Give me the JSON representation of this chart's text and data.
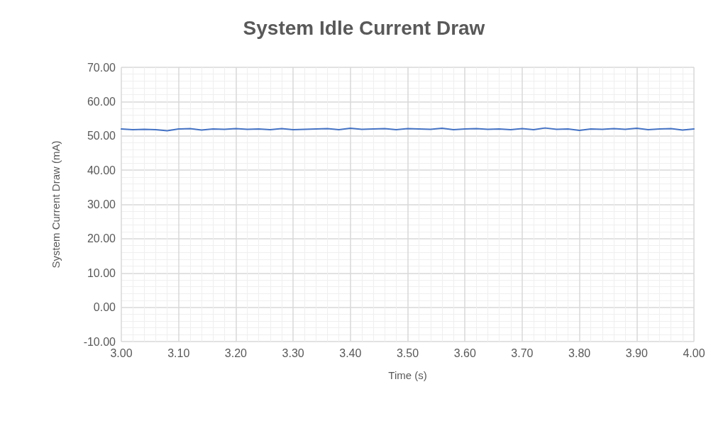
{
  "chart_data": {
    "type": "line",
    "title": "System Idle Current Draw",
    "xlabel": "Time (s)",
    "ylabel": "System Current Draw (mA)",
    "x": [
      3.0,
      3.02,
      3.04,
      3.06,
      3.08,
      3.1,
      3.12,
      3.14,
      3.16,
      3.18,
      3.2,
      3.22,
      3.24,
      3.26,
      3.28,
      3.3,
      3.32,
      3.34,
      3.36,
      3.38,
      3.4,
      3.42,
      3.44,
      3.46,
      3.48,
      3.5,
      3.52,
      3.54,
      3.56,
      3.58,
      3.6,
      3.62,
      3.64,
      3.66,
      3.68,
      3.7,
      3.72,
      3.74,
      3.76,
      3.78,
      3.8,
      3.82,
      3.84,
      3.86,
      3.88,
      3.9,
      3.92,
      3.94,
      3.96,
      3.98,
      4.0
    ],
    "series": [
      {
        "color": "#4472c4",
        "values": [
          52.0,
          51.8,
          51.9,
          51.8,
          51.5,
          52.0,
          52.1,
          51.7,
          52.0,
          51.9,
          52.1,
          51.9,
          52.0,
          51.8,
          52.1,
          51.8,
          51.9,
          52.0,
          52.1,
          51.8,
          52.2,
          51.9,
          52.0,
          52.1,
          51.8,
          52.1,
          52.0,
          51.9,
          52.2,
          51.8,
          52.0,
          52.1,
          51.9,
          52.0,
          51.8,
          52.1,
          51.8,
          52.3,
          51.9,
          52.0,
          51.6,
          52.0,
          51.9,
          52.1,
          51.9,
          52.2,
          51.8,
          52.0,
          52.1,
          51.7,
          52.0
        ]
      }
    ],
    "xlim": [
      3.0,
      4.0
    ],
    "xticks": [
      {
        "value": 3.0,
        "label": "3.00"
      },
      {
        "value": 3.1,
        "label": "3.10"
      },
      {
        "value": 3.2,
        "label": "3.20"
      },
      {
        "value": 3.3,
        "label": "3.30"
      },
      {
        "value": 3.4,
        "label": "3.40"
      },
      {
        "value": 3.5,
        "label": "3.50"
      },
      {
        "value": 3.6,
        "label": "3.60"
      },
      {
        "value": 3.7,
        "label": "3.70"
      },
      {
        "value": 3.8,
        "label": "3.80"
      },
      {
        "value": 3.9,
        "label": "3.90"
      },
      {
        "value": 4.0,
        "label": "4.00"
      }
    ],
    "ylim": [
      -10,
      70
    ],
    "yticks": [
      {
        "value": -10,
        "label": "-10.00"
      },
      {
        "value": 0,
        "label": "0.00"
      },
      {
        "value": 10,
        "label": "10.00"
      },
      {
        "value": 20,
        "label": "20.00"
      },
      {
        "value": 30,
        "label": "30.00"
      },
      {
        "value": 40,
        "label": "40.00"
      },
      {
        "value": 50,
        "label": "50.00"
      },
      {
        "value": 60,
        "label": "60.00"
      },
      {
        "value": 70,
        "label": "70.00"
      }
    ],
    "grid": true,
    "marker": "none",
    "line_style": "solid"
  }
}
